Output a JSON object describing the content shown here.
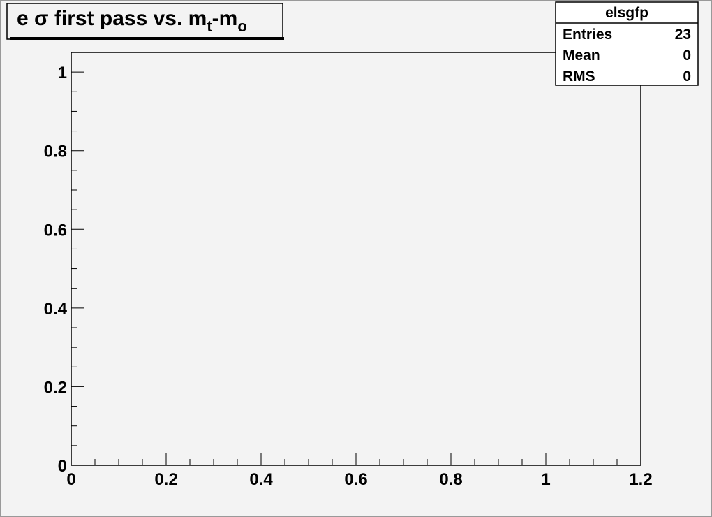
{
  "chart_data": {
    "type": "hist",
    "title_parts": [
      {
        "text": "e σ first pass vs. m"
      },
      {
        "text": "t",
        "sub": true
      },
      {
        "text": "-m"
      },
      {
        "text": "o",
        "sub": true
      }
    ],
    "stats": {
      "name": "elsgfp",
      "rows": [
        {
          "label": "Entries",
          "value": 23
        },
        {
          "label": "Mean",
          "value": 0
        },
        {
          "label": "RMS",
          "value": 0
        }
      ]
    },
    "xlim": [
      0,
      1.2
    ],
    "xticks": [
      0,
      0.2,
      0.4,
      0.6,
      0.8,
      1,
      1.2
    ],
    "ylim": [
      0,
      1.05
    ],
    "yticks": [
      0,
      0.2,
      0.4,
      0.6,
      0.8,
      1
    ]
  }
}
